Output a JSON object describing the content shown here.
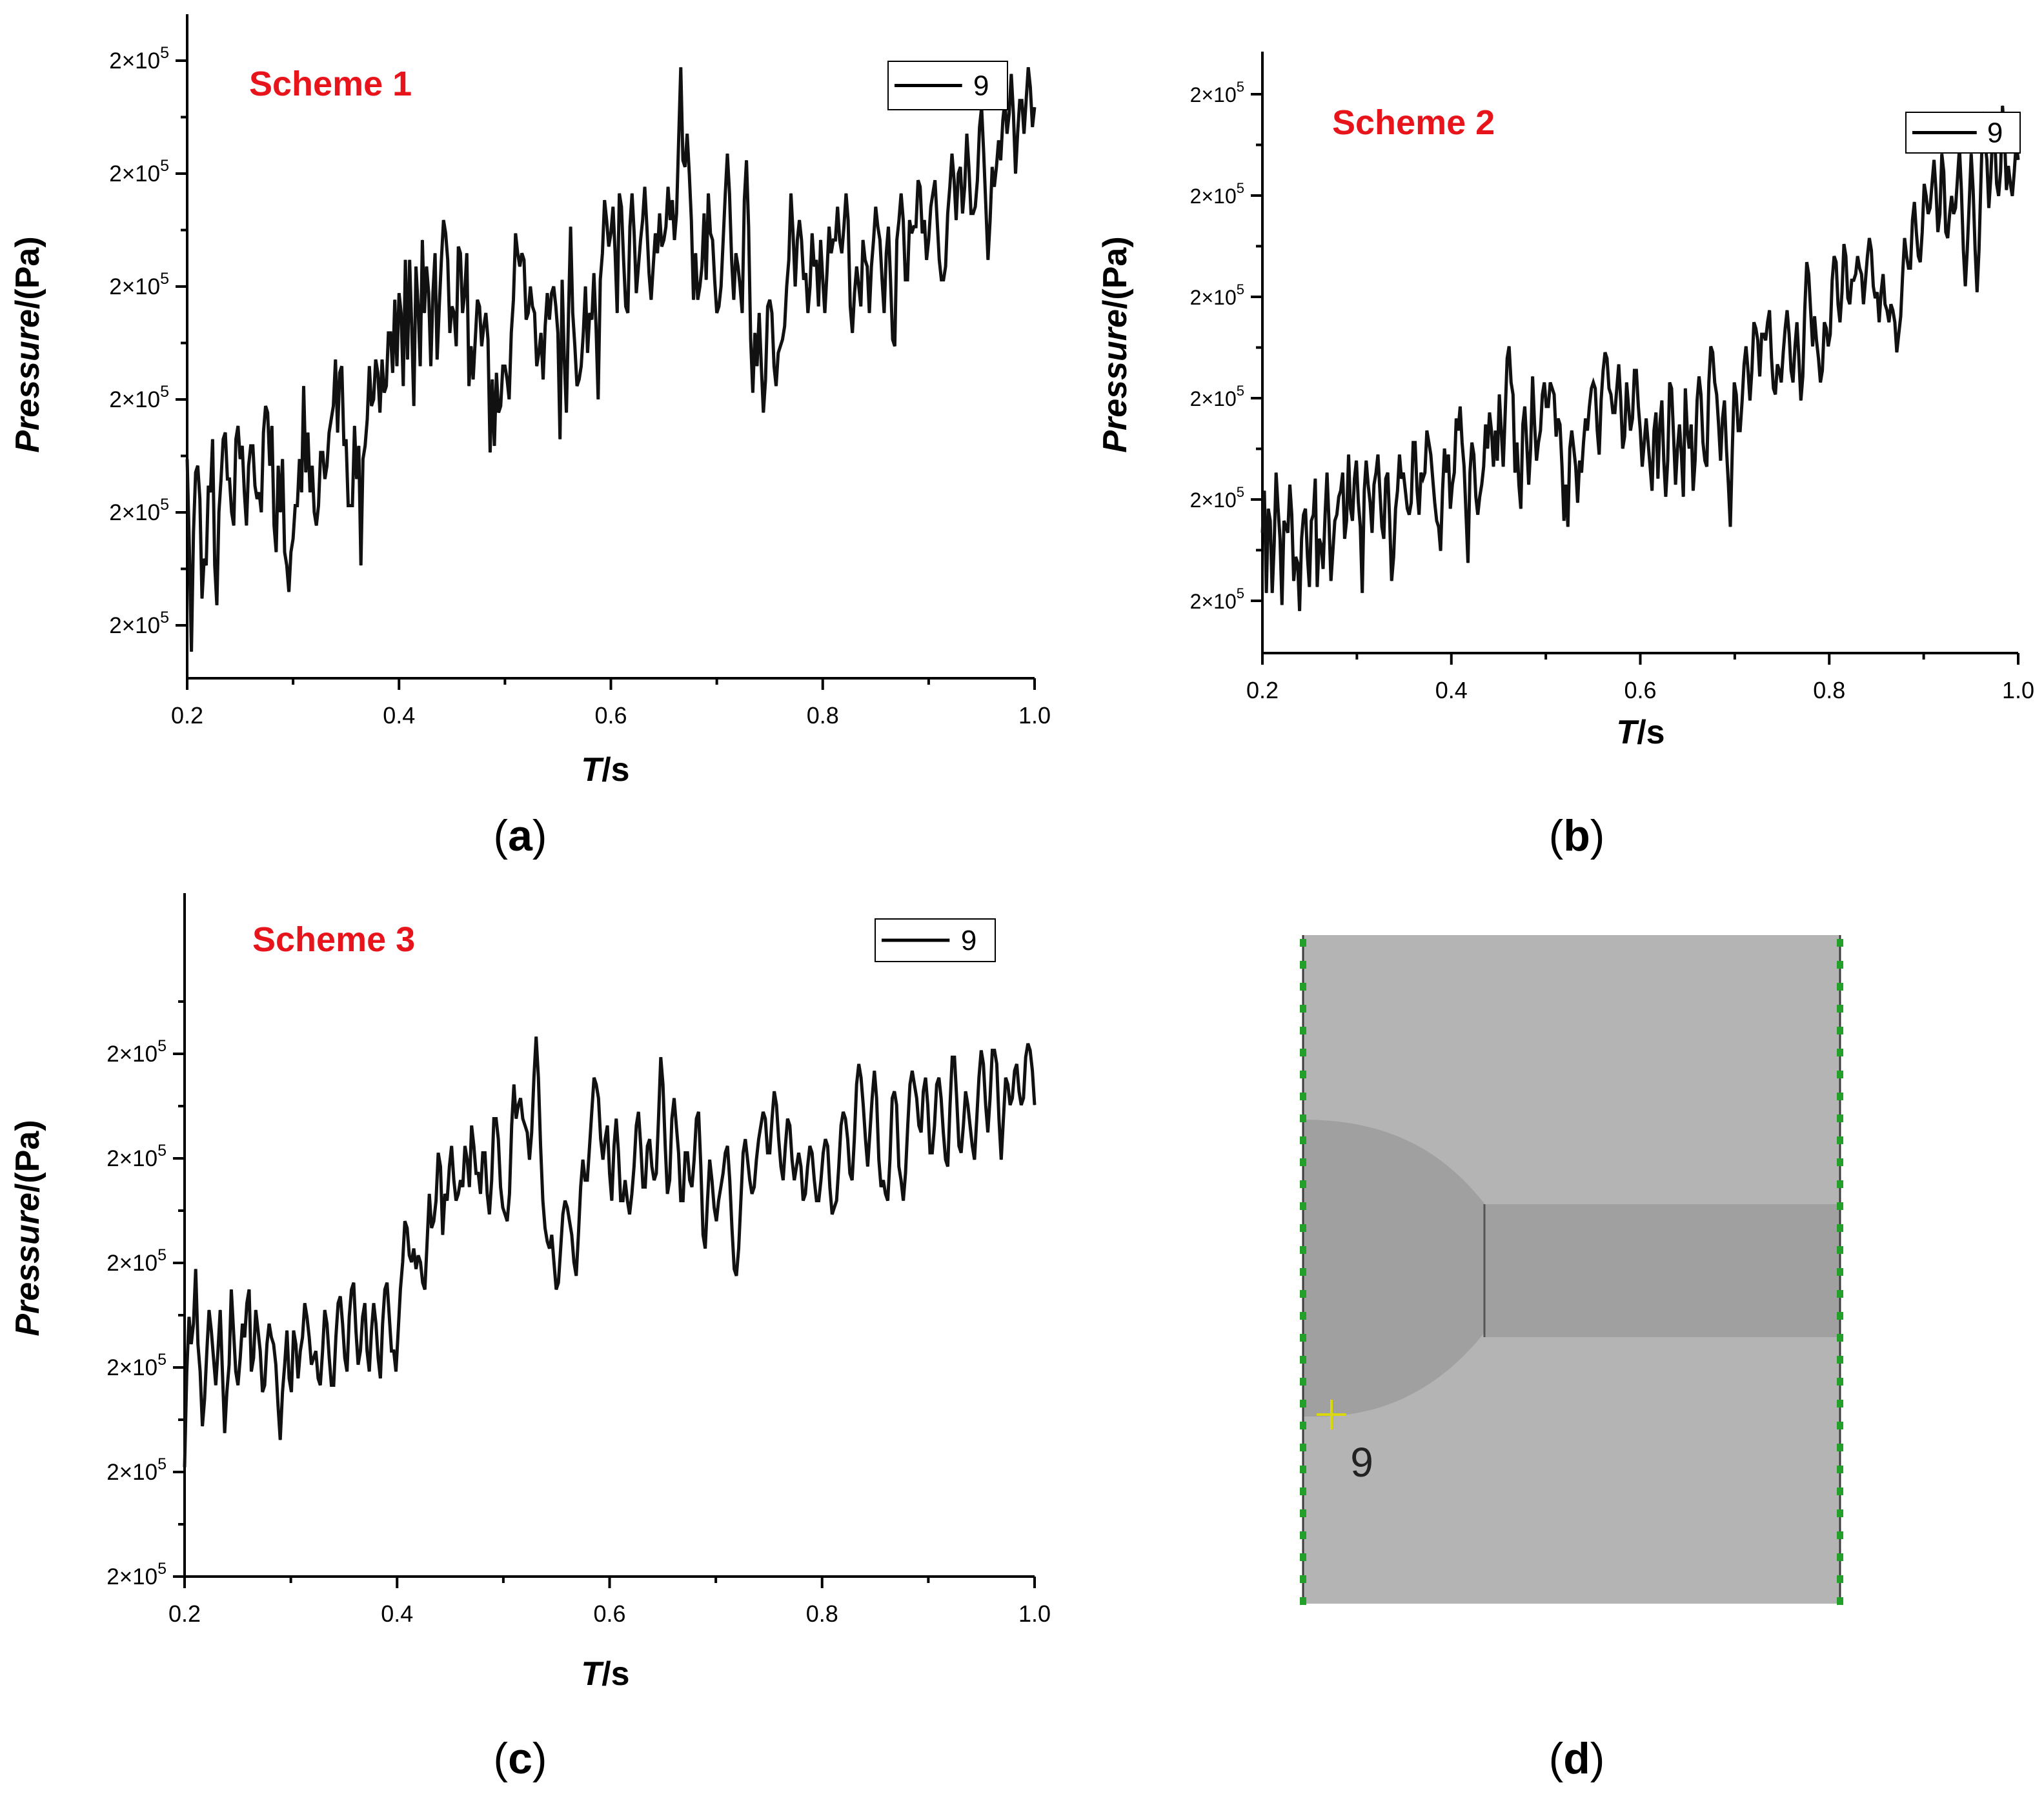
{
  "figure_panels": [
    "a",
    "b",
    "c",
    "d"
  ],
  "chart_data": [
    {
      "id": "a",
      "type": "line",
      "panel_label_open": "(",
      "panel_label": "a",
      "panel_label_close": ")",
      "annotation": "Scheme 1",
      "annotation_color": "#e8141b",
      "annotation_font": "sans",
      "legend_label": "9",
      "xlabel_italic": "T",
      "xlabel_rest": "/s",
      "ylabel_italic": "Pressure",
      "ylabel_rest": "/(Pa)",
      "x_ticks": [
        "0.2",
        "0.4",
        "0.6",
        "0.8",
        "1.0"
      ],
      "y_tick_base": "2×10",
      "y_tick_exp": "5",
      "xlim": [
        0.2,
        1.0
      ],
      "ylim": [
        0.0,
        1.0
      ],
      "line_color": "#111111",
      "y": [
        0.33,
        0.2,
        0.04,
        0.22,
        0.31,
        0.32,
        0.27,
        0.12,
        0.18,
        0.17,
        0.29,
        0.28,
        0.36,
        0.17,
        0.11,
        0.25,
        0.3,
        0.36,
        0.37,
        0.3,
        0.3,
        0.25,
        0.23,
        0.36,
        0.38,
        0.33,
        0.35,
        0.28,
        0.23,
        0.32,
        0.35,
        0.35,
        0.29,
        0.27,
        0.28,
        0.25,
        0.37,
        0.41,
        0.4,
        0.32,
        0.38,
        0.23,
        0.19,
        0.32,
        0.25,
        0.33,
        0.19,
        0.17,
        0.13,
        0.19,
        0.21,
        0.26,
        0.26,
        0.33,
        0.28,
        0.44,
        0.31,
        0.37,
        0.28,
        0.32,
        0.25,
        0.23,
        0.26,
        0.34,
        0.34,
        0.3,
        0.32,
        0.37,
        0.39,
        0.41,
        0.48,
        0.37,
        0.46,
        0.47,
        0.35,
        0.36,
        0.26,
        0.26,
        0.26,
        0.38,
        0.3,
        0.35,
        0.17,
        0.33,
        0.35,
        0.39,
        0.47,
        0.41,
        0.42,
        0.48,
        0.46,
        0.4,
        0.48,
        0.43,
        0.44,
        0.52,
        0.52,
        0.46,
        0.57,
        0.47,
        0.58,
        0.55,
        0.44,
        0.63,
        0.48,
        0.63,
        0.53,
        0.41,
        0.62,
        0.56,
        0.47,
        0.66,
        0.55,
        0.62,
        0.58,
        0.47,
        0.58,
        0.64,
        0.48,
        0.56,
        0.63,
        0.69,
        0.67,
        0.63,
        0.52,
        0.56,
        0.55,
        0.5,
        0.65,
        0.64,
        0.55,
        0.58,
        0.64,
        0.44,
        0.5,
        0.45,
        0.51,
        0.57,
        0.56,
        0.5,
        0.53,
        0.55,
        0.51,
        0.34,
        0.45,
        0.35,
        0.46,
        0.4,
        0.41,
        0.47,
        0.47,
        0.45,
        0.42,
        0.52,
        0.57,
        0.67,
        0.64,
        0.62,
        0.64,
        0.63,
        0.54,
        0.55,
        0.59,
        0.56,
        0.55,
        0.47,
        0.49,
        0.52,
        0.45,
        0.53,
        0.58,
        0.54,
        0.58,
        0.59,
        0.56,
        0.52,
        0.36,
        0.6,
        0.48,
        0.4,
        0.55,
        0.68,
        0.55,
        0.5,
        0.44,
        0.45,
        0.47,
        0.52,
        0.59,
        0.49,
        0.55,
        0.54,
        0.61,
        0.53,
        0.42,
        0.6,
        0.64,
        0.72,
        0.69,
        0.65,
        0.67,
        0.71,
        0.64,
        0.55,
        0.73,
        0.71,
        0.63,
        0.56,
        0.55,
        0.68,
        0.73,
        0.67,
        0.58,
        0.62,
        0.66,
        0.69,
        0.74,
        0.68,
        0.61,
        0.57,
        0.62,
        0.67,
        0.64,
        0.7,
        0.65,
        0.66,
        0.68,
        0.74,
        0.69,
        0.72,
        0.66,
        0.7,
        0.81,
        0.92,
        0.78,
        0.77,
        0.82,
        0.76,
        0.69,
        0.57,
        0.64,
        0.57,
        0.59,
        0.62,
        0.7,
        0.6,
        0.73,
        0.67,
        0.66,
        0.6,
        0.55,
        0.56,
        0.59,
        0.66,
        0.73,
        0.79,
        0.73,
        0.63,
        0.57,
        0.64,
        0.62,
        0.59,
        0.55,
        0.72,
        0.78,
        0.68,
        0.51,
        0.43,
        0.52,
        0.47,
        0.55,
        0.47,
        0.4,
        0.45,
        0.56,
        0.57,
        0.55,
        0.47,
        0.44,
        0.49,
        0.5,
        0.51,
        0.53,
        0.59,
        0.63,
        0.73,
        0.67,
        0.59,
        0.66,
        0.69,
        0.66,
        0.6,
        0.61,
        0.55,
        0.59,
        0.67,
        0.62,
        0.63,
        0.56,
        0.66,
        0.6,
        0.55,
        0.61,
        0.68,
        0.64,
        0.66,
        0.66,
        0.71,
        0.66,
        0.64,
        0.68,
        0.73,
        0.69,
        0.56,
        0.52,
        0.58,
        0.62,
        0.59,
        0.56,
        0.66,
        0.63,
        0.62,
        0.55,
        0.62,
        0.66,
        0.71,
        0.68,
        0.66,
        0.6,
        0.55,
        0.64,
        0.68,
        0.6,
        0.51,
        0.5,
        0.66,
        0.69,
        0.73,
        0.69,
        0.6,
        0.6,
        0.69,
        0.67,
        0.68,
        0.68,
        0.75,
        0.74,
        0.67,
        0.69,
        0.63,
        0.66,
        0.71,
        0.73,
        0.75,
        0.69,
        0.63,
        0.6,
        0.6,
        0.62,
        0.7,
        0.74,
        0.79,
        0.75,
        0.69,
        0.76,
        0.77,
        0.7,
        0.74,
        0.82,
        0.77,
        0.7,
        0.7,
        0.71,
        0.75,
        0.83,
        0.86,
        0.79,
        0.71,
        0.63,
        0.69,
        0.77,
        0.74,
        0.77,
        0.81,
        0.78,
        0.84,
        0.87,
        0.82,
        0.85,
        0.91,
        0.85,
        0.76,
        0.82,
        0.87,
        0.87,
        0.82,
        0.87,
        0.92,
        0.89,
        0.83,
        0.86
      ]
    },
    {
      "id": "b",
      "type": "line",
      "panel_label_open": "(",
      "panel_label": "b",
      "panel_label_close": ")",
      "annotation": "Scheme 2",
      "annotation_color": "#e8141b",
      "annotation_font": "sans",
      "legend_label": "9",
      "xlabel_italic": "T",
      "xlabel_rest": "/s",
      "ylabel_italic": "Pressure",
      "ylabel_rest": "/(Pa)",
      "x_ticks": [
        "0.2",
        "0.4",
        "0.6",
        "0.8",
        "1.0"
      ],
      "y_tick_base": "2×10",
      "y_tick_exp": "5",
      "xlim": [
        0.2,
        1.0
      ],
      "ylim": [
        0.0,
        1.0
      ],
      "line_color": "#111111",
      "y": [
        0.2,
        0.27,
        0.1,
        0.24,
        0.22,
        0.1,
        0.18,
        0.3,
        0.24,
        0.19,
        0.08,
        0.22,
        0.21,
        0.2,
        0.28,
        0.23,
        0.12,
        0.16,
        0.15,
        0.07,
        0.19,
        0.23,
        0.24,
        0.16,
        0.11,
        0.22,
        0.23,
        0.29,
        0.11,
        0.19,
        0.18,
        0.14,
        0.23,
        0.3,
        0.22,
        0.12,
        0.17,
        0.22,
        0.23,
        0.26,
        0.27,
        0.3,
        0.19,
        0.22,
        0.33,
        0.24,
        0.22,
        0.29,
        0.32,
        0.25,
        0.21,
        0.1,
        0.27,
        0.32,
        0.28,
        0.25,
        0.2,
        0.28,
        0.3,
        0.33,
        0.27,
        0.21,
        0.19,
        0.29,
        0.3,
        0.22,
        0.12,
        0.16,
        0.24,
        0.27,
        0.33,
        0.29,
        0.3,
        0.27,
        0.24,
        0.23,
        0.25,
        0.35,
        0.35,
        0.27,
        0.23,
        0.3,
        0.29,
        0.3,
        0.37,
        0.35,
        0.33,
        0.29,
        0.25,
        0.22,
        0.21,
        0.17,
        0.27,
        0.34,
        0.3,
        0.33,
        0.24,
        0.28,
        0.3,
        0.39,
        0.37,
        0.41,
        0.35,
        0.31,
        0.23,
        0.15,
        0.3,
        0.35,
        0.33,
        0.26,
        0.23,
        0.26,
        0.28,
        0.31,
        0.38,
        0.34,
        0.4,
        0.37,
        0.31,
        0.37,
        0.32,
        0.43,
        0.37,
        0.31,
        0.4,
        0.49,
        0.51,
        0.45,
        0.43,
        0.3,
        0.35,
        0.28,
        0.24,
        0.38,
        0.41,
        0.35,
        0.28,
        0.34,
        0.46,
        0.38,
        0.32,
        0.35,
        0.37,
        0.43,
        0.45,
        0.41,
        0.41,
        0.45,
        0.44,
        0.43,
        0.36,
        0.39,
        0.38,
        0.31,
        0.22,
        0.28,
        0.21,
        0.34,
        0.37,
        0.34,
        0.31,
        0.25,
        0.32,
        0.3,
        0.35,
        0.39,
        0.37,
        0.41,
        0.44,
        0.45,
        0.44,
        0.37,
        0.33,
        0.42,
        0.47,
        0.5,
        0.49,
        0.44,
        0.43,
        0.4,
        0.4,
        0.44,
        0.48,
        0.42,
        0.34,
        0.36,
        0.45,
        0.41,
        0.37,
        0.39,
        0.47,
        0.47,
        0.41,
        0.37,
        0.31,
        0.35,
        0.39,
        0.35,
        0.31,
        0.27,
        0.37,
        0.4,
        0.29,
        0.38,
        0.42,
        0.32,
        0.26,
        0.32,
        0.45,
        0.44,
        0.36,
        0.28,
        0.34,
        0.38,
        0.33,
        0.26,
        0.44,
        0.37,
        0.34,
        0.38,
        0.27,
        0.32,
        0.42,
        0.46,
        0.43,
        0.35,
        0.32,
        0.31,
        0.45,
        0.51,
        0.5,
        0.45,
        0.43,
        0.38,
        0.32,
        0.39,
        0.42,
        0.34,
        0.28,
        0.21,
        0.34,
        0.45,
        0.43,
        0.37,
        0.37,
        0.42,
        0.48,
        0.51,
        0.47,
        0.42,
        0.47,
        0.55,
        0.54,
        0.52,
        0.46,
        0.53,
        0.53,
        0.52,
        0.55,
        0.57,
        0.49,
        0.44,
        0.43,
        0.48,
        0.47,
        0.45,
        0.5,
        0.54,
        0.57,
        0.53,
        0.47,
        0.45,
        0.51,
        0.55,
        0.49,
        0.42,
        0.46,
        0.57,
        0.65,
        0.63,
        0.57,
        0.51,
        0.56,
        0.52,
        0.49,
        0.45,
        0.47,
        0.55,
        0.54,
        0.51,
        0.53,
        0.62,
        0.66,
        0.65,
        0.58,
        0.55,
        0.6,
        0.68,
        0.66,
        0.59,
        0.58,
        0.62,
        0.62,
        0.63,
        0.66,
        0.64,
        0.63,
        0.58,
        0.62,
        0.66,
        0.69,
        0.67,
        0.61,
        0.59,
        0.6,
        0.55,
        0.6,
        0.63,
        0.58,
        0.57,
        0.55,
        0.58,
        0.57,
        0.55,
        0.5,
        0.53,
        0.56,
        0.63,
        0.69,
        0.66,
        0.64,
        0.64,
        0.72,
        0.75,
        0.7,
        0.66,
        0.65,
        0.7,
        0.78,
        0.76,
        0.73,
        0.74,
        0.78,
        0.82,
        0.77,
        0.7,
        0.73,
        0.83,
        0.8,
        0.7,
        0.69,
        0.73,
        0.76,
        0.73,
        0.74,
        0.79,
        0.84,
        0.77,
        0.67,
        0.61,
        0.67,
        0.75,
        0.83,
        0.77,
        0.67,
        0.6,
        0.67,
        0.79,
        0.9,
        0.85,
        0.82,
        0.74,
        0.79,
        0.87,
        0.86,
        0.78,
        0.76,
        0.8,
        0.91,
        0.86,
        0.77,
        0.81,
        0.78,
        0.76,
        0.8,
        0.85,
        0.82
      ]
    },
    {
      "id": "c",
      "type": "line",
      "panel_label_open": "(",
      "panel_label": "c",
      "panel_label_close": ")",
      "annotation": "Scheme 3",
      "annotation_color": "#e8141b",
      "annotation_font": "serif",
      "legend_label": "9",
      "xlabel_italic": "T",
      "xlabel_rest": "/s",
      "ylabel_italic": "Pressure",
      "ylabel_rest": "/(Pa)",
      "x_ticks": [
        "0.2",
        "0.4",
        "0.6",
        "0.8",
        "1.0"
      ],
      "y_tick_base": "2×10",
      "y_tick_exp": "5",
      "xlim": [
        0.2,
        1.0
      ],
      "ylim": [
        0.0,
        1.0
      ],
      "line_color": "#111111",
      "y": [
        0.16,
        0.3,
        0.38,
        0.34,
        0.37,
        0.45,
        0.34,
        0.3,
        0.22,
        0.26,
        0.33,
        0.39,
        0.36,
        0.32,
        0.28,
        0.33,
        0.39,
        0.3,
        0.21,
        0.27,
        0.31,
        0.42,
        0.36,
        0.3,
        0.28,
        0.32,
        0.37,
        0.35,
        0.4,
        0.42,
        0.3,
        0.32,
        0.39,
        0.36,
        0.33,
        0.27,
        0.28,
        0.34,
        0.37,
        0.35,
        0.34,
        0.31,
        0.25,
        0.2,
        0.27,
        0.31,
        0.36,
        0.29,
        0.27,
        0.36,
        0.34,
        0.29,
        0.33,
        0.35,
        0.4,
        0.38,
        0.35,
        0.31,
        0.32,
        0.33,
        0.29,
        0.28,
        0.33,
        0.39,
        0.37,
        0.32,
        0.28,
        0.28,
        0.35,
        0.4,
        0.41,
        0.37,
        0.32,
        0.3,
        0.38,
        0.42,
        0.43,
        0.36,
        0.31,
        0.33,
        0.38,
        0.4,
        0.33,
        0.3,
        0.36,
        0.4,
        0.37,
        0.32,
        0.29,
        0.37,
        0.42,
        0.43,
        0.38,
        0.33,
        0.33,
        0.3,
        0.36,
        0.42,
        0.46,
        0.52,
        0.51,
        0.47,
        0.46,
        0.48,
        0.45,
        0.47,
        0.46,
        0.43,
        0.42,
        0.49,
        0.56,
        0.51,
        0.52,
        0.55,
        0.62,
        0.6,
        0.5,
        0.56,
        0.55,
        0.6,
        0.63,
        0.58,
        0.55,
        0.56,
        0.58,
        0.57,
        0.63,
        0.61,
        0.57,
        0.66,
        0.63,
        0.59,
        0.59,
        0.56,
        0.62,
        0.62,
        0.56,
        0.53,
        0.58,
        0.67,
        0.67,
        0.64,
        0.57,
        0.54,
        0.53,
        0.52,
        0.56,
        0.66,
        0.72,
        0.67,
        0.69,
        0.7,
        0.67,
        0.66,
        0.65,
        0.61,
        0.65,
        0.73,
        0.79,
        0.73,
        0.63,
        0.55,
        0.51,
        0.49,
        0.48,
        0.5,
        0.46,
        0.42,
        0.43,
        0.48,
        0.53,
        0.55,
        0.54,
        0.52,
        0.5,
        0.46,
        0.44,
        0.5,
        0.57,
        0.61,
        0.58,
        0.58,
        0.63,
        0.68,
        0.73,
        0.72,
        0.7,
        0.64,
        0.61,
        0.64,
        0.66,
        0.59,
        0.55,
        0.63,
        0.67,
        0.62,
        0.55,
        0.55,
        0.58,
        0.55,
        0.53,
        0.56,
        0.6,
        0.66,
        0.68,
        0.63,
        0.57,
        0.57,
        0.63,
        0.64,
        0.6,
        0.58,
        0.59,
        0.67,
        0.76,
        0.72,
        0.63,
        0.56,
        0.58,
        0.67,
        0.7,
        0.66,
        0.62,
        0.55,
        0.55,
        0.62,
        0.62,
        0.58,
        0.57,
        0.61,
        0.67,
        0.68,
        0.6,
        0.5,
        0.48,
        0.55,
        0.61,
        0.58,
        0.54,
        0.52,
        0.55,
        0.57,
        0.59,
        0.62,
        0.63,
        0.58,
        0.51,
        0.45,
        0.44,
        0.48,
        0.55,
        0.62,
        0.64,
        0.61,
        0.58,
        0.56,
        0.57,
        0.61,
        0.64,
        0.66,
        0.68,
        0.67,
        0.62,
        0.62,
        0.67,
        0.71,
        0.69,
        0.64,
        0.6,
        0.58,
        0.63,
        0.67,
        0.66,
        0.61,
        0.58,
        0.6,
        0.62,
        0.6,
        0.55,
        0.56,
        0.6,
        0.63,
        0.62,
        0.58,
        0.55,
        0.55,
        0.58,
        0.62,
        0.64,
        0.63,
        0.57,
        0.53,
        0.54,
        0.55,
        0.6,
        0.66,
        0.68,
        0.67,
        0.64,
        0.59,
        0.58,
        0.64,
        0.72,
        0.75,
        0.73,
        0.69,
        0.64,
        0.6,
        0.65,
        0.7,
        0.74,
        0.7,
        0.61,
        0.57,
        0.58,
        0.56,
        0.55,
        0.61,
        0.7,
        0.71,
        0.69,
        0.6,
        0.58,
        0.55,
        0.59,
        0.66,
        0.72,
        0.74,
        0.72,
        0.7,
        0.66,
        0.65,
        0.71,
        0.73,
        0.69,
        0.62,
        0.62,
        0.66,
        0.72,
        0.73,
        0.7,
        0.65,
        0.61,
        0.6,
        0.69,
        0.76,
        0.76,
        0.7,
        0.63,
        0.62,
        0.66,
        0.71,
        0.69,
        0.66,
        0.63,
        0.61,
        0.67,
        0.73,
        0.77,
        0.75,
        0.69,
        0.65,
        0.7,
        0.77,
        0.77,
        0.75,
        0.67,
        0.61,
        0.67,
        0.73,
        0.72,
        0.69,
        0.7,
        0.74,
        0.75,
        0.71,
        0.69,
        0.7,
        0.76,
        0.78,
        0.77,
        0.74,
        0.69
      ]
    }
  ],
  "panel_d": {
    "panel_label_open": "(",
    "panel_label": "d",
    "panel_label_close": ")",
    "probe_label": "9",
    "probe_marker_color": "#d8d80a",
    "domain_color": "#b4b4b4",
    "obstacle_color": "#a0a0a0",
    "boundary_color": "#22a02a"
  }
}
